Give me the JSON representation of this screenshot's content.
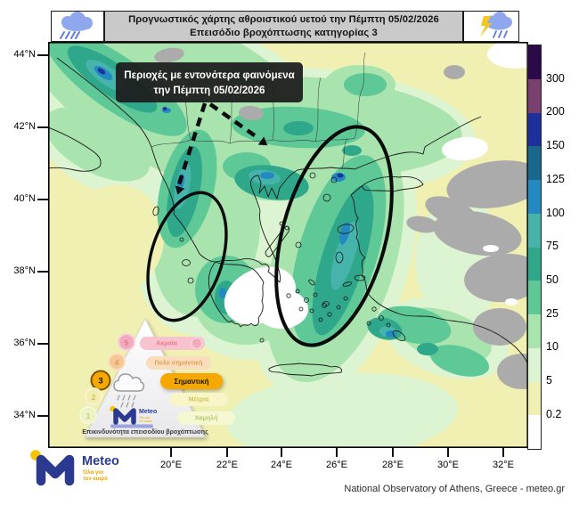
{
  "header": {
    "title_line1": "Προγνωστικός χάρτης αθροιστικού υετού την Πέμπτη 05/02/2026",
    "title_line2": "Επεισόδιο βροχόπτωσης κατηγορίας 3",
    "left_icon": "rain-cloud",
    "right_icon": "storm-cloud"
  },
  "map": {
    "annotation_line1": "Περιοχές με εντονότερα φαινόμενα",
    "annotation_line2": "την Πέμπτη 05/02/2026",
    "lat_labels": [
      "44°N",
      "42°N",
      "40°N",
      "38°N",
      "36°N",
      "34°N"
    ],
    "lon_labels": [
      "20°E",
      "22°E",
      "24°E",
      "26°E",
      "28°E",
      "30°E",
      "32°E"
    ]
  },
  "colorbar": {
    "labels": [
      "300",
      "200",
      "150",
      "125",
      "100",
      "75",
      "50",
      "25",
      "10",
      "5",
      "0.2"
    ],
    "colors": [
      "#2c0a4a",
      "#7a4170",
      "#1e2f9e",
      "#17678f",
      "#2289c2",
      "#47b4ac",
      "#2ea78a",
      "#5ec897",
      "#a9e3ae",
      "#dcf4d2",
      "#f0f0b2",
      "#ffffff"
    ],
    "nodata_color": "#ababab"
  },
  "pyramid": {
    "caption": "Επικινδυνότητα επεισοδίου βροχόπτωσης",
    "active_level": "3",
    "levels": [
      {
        "num": "5",
        "label": "Ακραία"
      },
      {
        "num": "4",
        "label": "Πολύ σημαντική"
      },
      {
        "num": "3",
        "label": "Σημαντική"
      },
      {
        "num": "2",
        "label": "Μέτρια"
      },
      {
        "num": "1",
        "label": "Χαμηλή"
      }
    ]
  },
  "logo": {
    "brand": "Meteo",
    "tagline_line1": "Όλα για",
    "tagline_line2": "τον καιρό"
  },
  "footer": {
    "attribution": "National Observatory of Athens, Greece - meteo.gr"
  }
}
